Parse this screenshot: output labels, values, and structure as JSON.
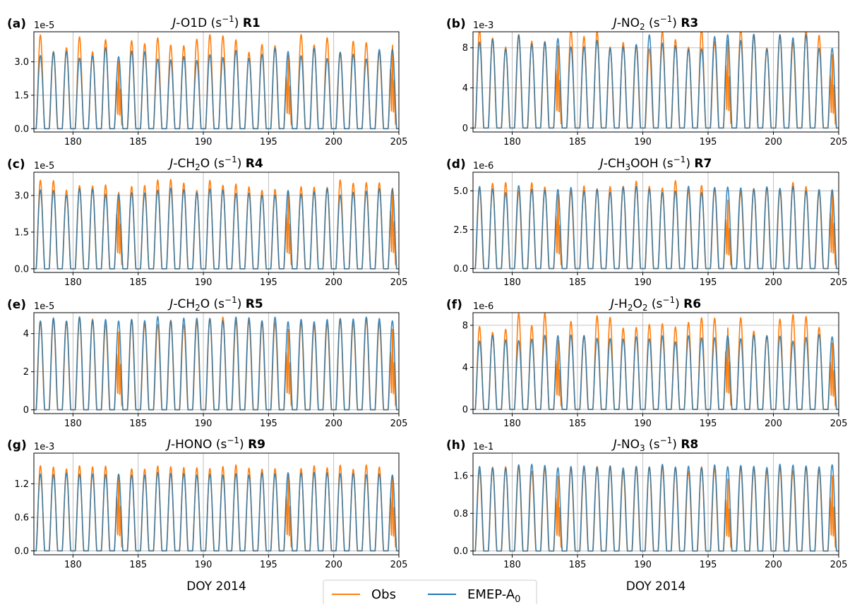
{
  "chart_data": [
    {
      "type": "line",
      "panel": "(a)",
      "title_prefix": "J",
      "title_main": "-O1D (s",
      "title_sup": "−1",
      "title_close": ") ",
      "reaction": "R1",
      "exponent": "1e-5",
      "xlim": [
        177,
        205
      ],
      "xticks": [
        180,
        185,
        190,
        195,
        200,
        205
      ],
      "ylim": [
        -0.15,
        4.35
      ],
      "yticks": [
        0.0,
        1.5,
        3.0
      ],
      "ytick_labels": [
        "0.0",
        "1.5",
        "3.0"
      ],
      "xlabel": "",
      "model_peak": 3.35,
      "model_peak_amp": 0.15,
      "obs_peak": 3.85,
      "obs_peak_amp": 0.2,
      "series": [
        {
          "name": "Obs",
          "color": "#ff7f0e"
        },
        {
          "name": "EMEP-A0",
          "color": "#1f77b4"
        }
      ]
    },
    {
      "type": "line",
      "panel": "(b)",
      "title_prefix": "J",
      "title_main": "-NO",
      "title_sub": "2",
      "title_after": " (s",
      "title_sup": "−1",
      "title_close": ") ",
      "reaction": "R3",
      "exponent": "1e-3",
      "xlim": [
        177,
        205
      ],
      "xticks": [
        180,
        185,
        190,
        195,
        200,
        205
      ],
      "ylim": [
        -0.4,
        9.6
      ],
      "yticks": [
        0,
        4,
        8
      ],
      "ytick_labels": [
        "0",
        "4",
        "8"
      ],
      "xlabel": "",
      "model_peak": 8.6,
      "model_peak_amp": 0.15,
      "obs_peak": 8.85,
      "obs_peak_amp": 0.2,
      "series": [
        {
          "name": "Obs",
          "color": "#ff7f0e"
        },
        {
          "name": "EMEP-A0",
          "color": "#1f77b4"
        }
      ]
    },
    {
      "type": "line",
      "panel": "(c)",
      "title_prefix": "J",
      "title_main": "-CH",
      "title_sub": "2",
      "title_after": "O (s",
      "title_sup": "−1",
      "title_close": ") ",
      "reaction": "R4",
      "exponent": "1e-5",
      "xlim": [
        177,
        205
      ],
      "xticks": [
        180,
        185,
        190,
        195,
        200,
        205
      ],
      "ylim": [
        -0.15,
        3.95
      ],
      "yticks": [
        0.0,
        1.5,
        3.0
      ],
      "ytick_labels": [
        "0.0",
        "1.5",
        "3.0"
      ],
      "xlabel": "",
      "model_peak": 3.15,
      "model_peak_amp": 0.08,
      "obs_peak": 3.45,
      "obs_peak_amp": 0.12,
      "series": [
        {
          "name": "Obs",
          "color": "#ff7f0e"
        },
        {
          "name": "EMEP-A0",
          "color": "#1f77b4"
        }
      ]
    },
    {
      "type": "line",
      "panel": "(d)",
      "title_prefix": "J",
      "title_main": "-CH",
      "title_sub": "3",
      "title_after": "OOH (s",
      "title_sup": "−1",
      "title_close": ") ",
      "reaction": "R7",
      "exponent": "1e-6",
      "xlim": [
        177,
        205
      ],
      "xticks": [
        180,
        185,
        190,
        195,
        200,
        205
      ],
      "ylim": [
        -0.25,
        6.2
      ],
      "yticks": [
        0.0,
        2.5,
        5.0
      ],
      "ytick_labels": [
        "0.0",
        "2.5",
        "5.0"
      ],
      "xlabel": "",
      "model_peak": 5.1,
      "model_peak_amp": 0.08,
      "obs_peak": 5.3,
      "obs_peak_amp": 0.12,
      "series": [
        {
          "name": "Obs",
          "color": "#ff7f0e"
        },
        {
          "name": "EMEP-A0",
          "color": "#1f77b4"
        }
      ]
    },
    {
      "type": "line",
      "panel": "(e)",
      "title_prefix": "J",
      "title_main": "-CH",
      "title_sub": "2",
      "title_after": "O (s",
      "title_sup": "−1",
      "title_close": ") ",
      "reaction": "R5",
      "exponent": "1e-5",
      "xlim": [
        177,
        205
      ],
      "xticks": [
        180,
        185,
        190,
        195,
        200,
        205
      ],
      "ylim": [
        -0.2,
        5.1
      ],
      "yticks": [
        0,
        2,
        4
      ],
      "ytick_labels": [
        "0",
        "2",
        "4"
      ],
      "xlabel": "",
      "model_peak": 4.75,
      "model_peak_amp": 0.05,
      "obs_peak": 4.65,
      "obs_peak_amp": 0.08,
      "series": [
        {
          "name": "Obs",
          "color": "#ff7f0e"
        },
        {
          "name": "EMEP-A0",
          "color": "#1f77b4"
        }
      ]
    },
    {
      "type": "line",
      "panel": "(f)",
      "title_prefix": "J",
      "title_main": "-H",
      "title_sub": "2",
      "title_after": "O",
      "title_sub2": "2",
      "title_after2": " (s",
      "title_sup": "−1",
      "title_close": ") ",
      "reaction": "R6",
      "exponent": "1e-6",
      "xlim": [
        177,
        205
      ],
      "xticks": [
        180,
        185,
        190,
        195,
        200,
        205
      ],
      "ylim": [
        -0.4,
        9.2
      ],
      "yticks": [
        0,
        4,
        8
      ],
      "ytick_labels": [
        "0",
        "4",
        "8"
      ],
      "xlabel": "",
      "model_peak": 6.8,
      "model_peak_amp": 0.1,
      "obs_peak": 8.1,
      "obs_peak_amp": 0.25,
      "series": [
        {
          "name": "Obs",
          "color": "#ff7f0e"
        },
        {
          "name": "EMEP-A0",
          "color": "#1f77b4"
        }
      ]
    },
    {
      "type": "line",
      "panel": "(g)",
      "title_prefix": "J",
      "title_main": "-HONO (s",
      "title_sup": "−1",
      "title_close": ") ",
      "reaction": "R9",
      "exponent": "1e-3",
      "xlim": [
        177,
        205
      ],
      "xticks": [
        180,
        185,
        190,
        195,
        200,
        205
      ],
      "ylim": [
        -0.07,
        1.75
      ],
      "yticks": [
        0.0,
        0.6,
        1.2
      ],
      "ytick_labels": [
        "0.0",
        "0.6",
        "1.2"
      ],
      "xlabel": "DOY 2014",
      "model_peak": 1.38,
      "model_peak_amp": 0.03,
      "obs_peak": 1.5,
      "obs_peak_amp": 0.05,
      "series": [
        {
          "name": "Obs",
          "color": "#ff7f0e"
        },
        {
          "name": "EMEP-A0",
          "color": "#1f77b4"
        }
      ]
    },
    {
      "type": "line",
      "panel": "(h)",
      "title_prefix": "J",
      "title_main": "-NO",
      "title_sub": "3",
      "title_after": " (s",
      "title_sup": "−1",
      "title_close": ") ",
      "reaction": "R8",
      "exponent": "1e-1",
      "xlim": [
        177,
        205
      ],
      "xticks": [
        180,
        185,
        190,
        195,
        200,
        205
      ],
      "ylim": [
        -0.08,
        2.08
      ],
      "yticks": [
        0.0,
        0.8,
        1.6
      ],
      "ytick_labels": [
        "0.0",
        "0.8",
        "1.6"
      ],
      "xlabel": "DOY 2014",
      "model_peak": 1.8,
      "model_peak_amp": 0.04,
      "obs_peak": 1.75,
      "obs_peak_amp": 0.06,
      "series": [
        {
          "name": "Obs",
          "color": "#ff7f0e"
        },
        {
          "name": "EMEP-A0",
          "color": "#1f77b4"
        }
      ]
    }
  ],
  "legend": {
    "entries": [
      {
        "name": "Obs",
        "color": "#ff7f0e"
      },
      {
        "name": "EMEP-A",
        "sub": "0",
        "color": "#1f77b4"
      }
    ],
    "placement": "bottom-center"
  },
  "days": {
    "first_peak_doy": 177.5,
    "last_peak_doy": 204.5
  }
}
